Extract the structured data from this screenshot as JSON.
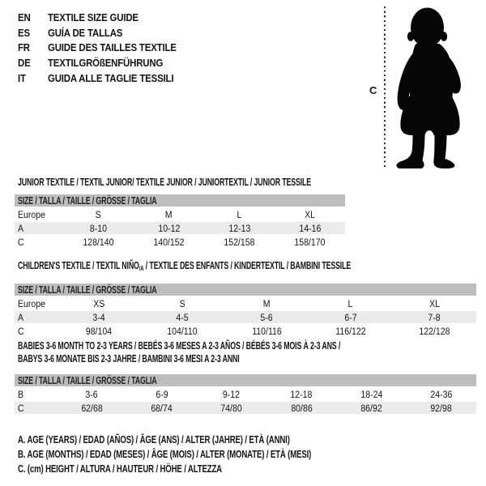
{
  "colors": {
    "header_bar": "#bdbdbd",
    "alt_row": "#ebebeb",
    "silhouette": "#060606",
    "text": "#141414"
  },
  "languages": [
    {
      "code": "EN",
      "label": "TEXTILE SIZE GUIDE"
    },
    {
      "code": "ES",
      "label": "GUÍA DE TALLAS"
    },
    {
      "code": "FR",
      "label": "GUIDE DES TAILLES TEXTILE"
    },
    {
      "code": "DE",
      "label": "TEXTILGRÖßENFÜHRUNG"
    },
    {
      "code": "IT",
      "label": "GUIDA ALLE TAGLIE TESSILI"
    }
  ],
  "figure": {
    "label": "C",
    "image": "baby-silhouette"
  },
  "tables": [
    {
      "id": "junior",
      "title_lines": [
        [
          {
            "t": "JUNIOR TEXTILE / TEXTIL JUNIOR/ TEXTILE JUNIOR / JUNIORTEXTIL / JUNIOR TESSILE"
          }
        ]
      ],
      "size_header": "SIZE / TALLA / TAILLE / GRÖSSE / TAGLIA",
      "rows": [
        {
          "label": "Europe",
          "values": [
            "S",
            "M",
            "L",
            "XL"
          ],
          "alt": false
        },
        {
          "label": "A",
          "values": [
            "8-10",
            "10-12",
            "12-13",
            "14-16"
          ],
          "alt": true
        },
        {
          "label": "C",
          "values": [
            "128/140",
            "140/152",
            "152/158",
            "158/170"
          ],
          "alt": false
        }
      ]
    },
    {
      "id": "children",
      "title_lines": [
        [
          {
            "t": "CHILDREN'S TEXTILE / TEXTIL NIÑO"
          },
          {
            "t": "/A",
            "sub": true
          },
          {
            "t": " / TEXTILE DES ENFANTS / KINDERTEXTIL / BAMBINI TESSILE"
          }
        ]
      ],
      "size_header": "SIZE / TALLA / TAILLE / GRÖSSE / TAGLIA",
      "rows": [
        {
          "label": "Europe",
          "values": [
            "XS",
            "S",
            "M",
            "L",
            "XL"
          ],
          "alt": false
        },
        {
          "label": "A",
          "values": [
            "3-4",
            "4-5",
            "5-6",
            "6-7",
            "7-8"
          ],
          "alt": true
        },
        {
          "label": "C",
          "values": [
            "98/104",
            "104/110",
            "110/116",
            "116/122",
            "122/128"
          ],
          "alt": false
        }
      ]
    },
    {
      "id": "babies",
      "title_lines": [
        [
          {
            "t": "BABIES 3-6 MONTH TO 2-3 YEARS / BEBÉS 3-6 MESES A 2-3 AÑOS / BÉBÉS 3-6 MOIS À 2-3 ANS /"
          }
        ],
        [
          {
            "t": "BABYS 3-6 MONATE BIS 2-3 JAHRE / BAMBINI 3-6 MESI A 2-3 ANNI"
          }
        ]
      ],
      "size_header": "SIZE / TALLA / TAILLE / GRÖSSE / TAGLIA",
      "rows": [
        {
          "label": "B",
          "values": [
            "3-6",
            "6-9",
            "9-12",
            "12-18",
            "18-24",
            "24-36"
          ],
          "alt": false
        },
        {
          "label": "C",
          "values": [
            "62/68",
            "68/74",
            "74/80",
            "80/86",
            "86/92",
            "92/98"
          ],
          "alt": true
        }
      ]
    }
  ],
  "footnotes": [
    "A. AGE (YEARS) / EDAD (AÑOS) / ÂGE (ANS) / ALTER (JAHRE) / ETÀ (ANNI)",
    "B. AGE (MONTHS) / EDAD (MESES) / ÂGE (MOIS) / ALTER (MONATE) / ETÀ (MESI)",
    "C. (cm) HEIGHT / ALTURA / HAUTEUR / HÖHE / ALTEZZA"
  ]
}
